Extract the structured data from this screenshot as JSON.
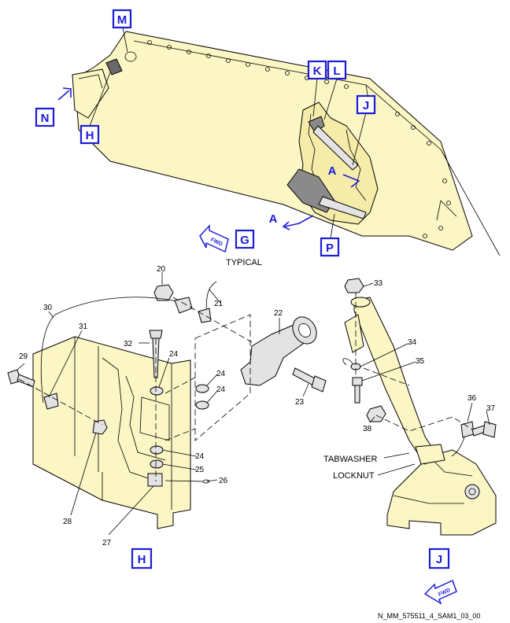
{
  "view_labels": {
    "M": "M",
    "H_top": "H",
    "N": "N",
    "K": "K",
    "L": "L",
    "J_top": "J",
    "P": "P",
    "G": "G",
    "H_detail": "H",
    "J_detail": "J"
  },
  "section_labels": {
    "a1": "A",
    "a2": "A"
  },
  "fwd": {
    "top": "FWD",
    "bottom": "FWD"
  },
  "typical": "TYPICAL",
  "callouts": {
    "c20": "20",
    "c21": "21",
    "c22": "22",
    "c23": "23",
    "c24a": "24",
    "c24b": "24",
    "c24c": "24",
    "c24d": "24",
    "c25": "25",
    "c26": "26",
    "c27": "27",
    "c28": "28",
    "c29": "29",
    "c30": "30",
    "c31": "31",
    "c32": "32",
    "c33": "33",
    "c34": "34",
    "c35": "35",
    "c36": "36",
    "c37": "37",
    "c38": "38"
  },
  "text_labels": {
    "tabwasher": "TABWASHER",
    "locknut": "LOCKNUT"
  },
  "figure_id": "N_MM_575511_4_SAM1_03_00",
  "colors": {
    "accent": "#1d1dd6",
    "part_fill": "#fbf6c4",
    "metal_fill": "#e3e3e3"
  }
}
